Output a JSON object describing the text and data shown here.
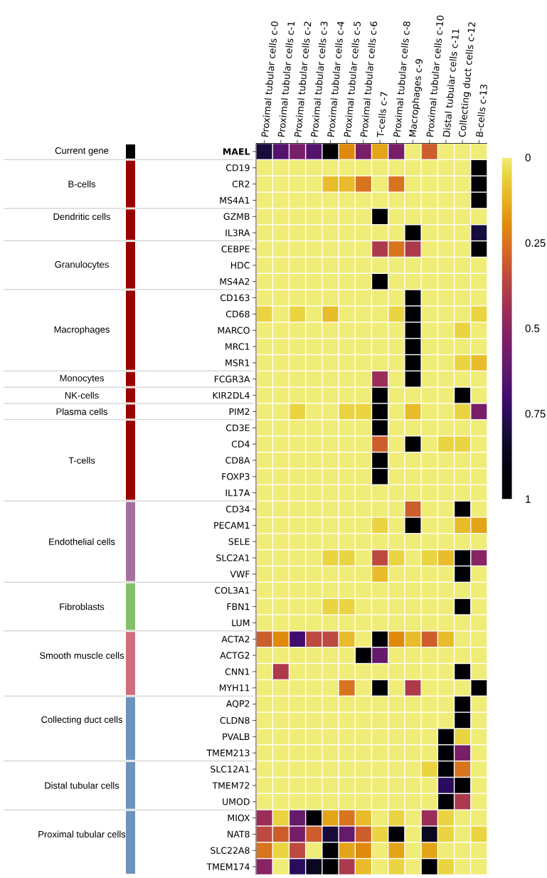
{
  "chart_data": {
    "type": "heatmap",
    "categories": [
      "Proximal tubular cells c-0",
      "Proximal tubular cells c-1",
      "Proximal tubular cells c-2",
      "Proximal tubular cells c-3",
      "Proximal tubular cells c-4",
      "Proximal tubular cells c-5",
      "Proximal tubular cells c-6",
      "T-cells c-7",
      "Proximal tubular cells c-8",
      "Macrophages c-9",
      "Proximal tubular cells c-10",
      "Distal tubular cells c-11",
      "Collecting duct cells c-12",
      "B-cells c-13"
    ],
    "y_categories": [
      "MAEL",
      "CD19",
      "CR2",
      "MS4A1",
      "GZMB",
      "IL3RA",
      "CEBPE",
      "HDC",
      "MS4A2",
      "CD163",
      "CD68",
      "MARCO",
      "MRC1",
      "MSR1",
      "FCGR3A",
      "KIR2DL4",
      "PIM2",
      "CD3E",
      "CD4",
      "CD8A",
      "FOXP3",
      "IL17A",
      "CD34",
      "PECAM1",
      "SELE",
      "SLC2A1",
      "VWF",
      "COL3A1",
      "FBN1",
      "LUM",
      "ACTA2",
      "ACTG2",
      "CNN1",
      "MYH11",
      "AQP2",
      "CLDN8",
      "PVALB",
      "TMEM213",
      "SLC12A1",
      "TMEM72",
      "UMOD",
      "MIOX",
      "NAT8",
      "SLC22A8",
      "TMEM174"
    ],
    "y2_categories": [
      "Current gene",
      null,
      "B-cells",
      null,
      "Dendritic cells",
      null,
      null,
      "Granulocytes",
      null,
      null,
      null,
      "Macrophages",
      null,
      null,
      "Monocytes",
      "NK-cells",
      "Plasma cells",
      null,
      null,
      "T-cells",
      null,
      null,
      null,
      null,
      "Endothelial cells",
      null,
      null,
      null,
      "Fibroblasts",
      null,
      null,
      "Smooth muscle cells",
      null,
      null,
      null,
      "Collecting duct cells",
      null,
      null,
      null,
      "Distal tubular cells",
      null,
      null,
      "Proximal tubular cells",
      null,
      null
    ],
    "cells": [
      [
        0.8,
        0.65,
        0.55,
        0.65,
        1,
        0.2,
        0.55,
        0.15,
        0.55,
        0,
        0.3,
        0,
        0,
        0
      ],
      [
        0,
        0,
        0,
        0,
        0,
        0,
        0,
        0,
        0,
        0,
        0,
        0,
        0,
        1
      ],
      [
        0,
        0,
        0,
        0,
        0.1,
        0.1,
        0.25,
        0,
        0.25,
        0,
        0,
        0,
        0,
        1
      ],
      [
        0,
        0,
        0,
        0,
        0,
        0,
        0,
        0,
        0,
        0,
        0,
        0,
        0,
        1
      ],
      [
        0,
        0,
        0,
        0,
        0,
        0,
        0,
        1,
        0,
        0,
        0,
        0,
        0,
        0
      ],
      [
        0,
        0,
        0,
        0,
        0,
        0,
        0,
        0,
        0,
        1,
        0,
        0,
        0,
        0.8
      ],
      [
        0,
        0,
        0,
        0,
        0,
        0,
        0,
        0.4,
        0.25,
        0.4,
        0,
        0,
        0,
        1
      ],
      [
        0,
        0,
        0,
        0,
        0,
        0,
        0,
        0,
        0,
        0,
        0,
        0,
        0,
        0
      ],
      [
        0,
        0,
        0,
        0,
        0,
        0,
        0,
        1,
        0,
        0,
        0,
        0,
        0,
        0
      ],
      [
        0,
        0,
        0,
        0,
        0,
        0,
        0,
        0,
        0,
        1,
        0,
        0,
        0,
        0
      ],
      [
        0.05,
        0,
        0.05,
        0,
        0.1,
        0,
        0,
        0,
        0.05,
        1,
        0,
        0,
        0,
        0.05
      ],
      [
        0,
        0,
        0,
        0,
        0,
        0,
        0,
        0,
        0,
        1,
        0,
        0,
        0.05,
        0
      ],
      [
        0,
        0,
        0,
        0,
        0,
        0,
        0,
        0,
        0,
        1,
        0,
        0,
        0,
        0
      ],
      [
        0,
        0,
        0,
        0,
        0,
        0,
        0,
        0,
        0,
        1,
        0,
        0,
        0.05,
        0.1
      ],
      [
        0,
        0,
        0,
        0,
        0,
        0,
        0,
        0.45,
        0,
        1,
        0,
        0,
        0,
        0
      ],
      [
        0,
        0,
        0,
        0,
        0,
        0,
        0,
        1,
        0,
        0,
        0,
        0,
        1,
        0
      ],
      [
        0,
        0,
        0.05,
        0,
        0,
        0.05,
        0.05,
        1,
        0,
        0.1,
        0,
        0,
        0.05,
        0.55
      ],
      [
        0,
        0,
        0,
        0,
        0,
        0,
        0,
        1,
        0,
        0,
        0,
        0,
        0,
        0
      ],
      [
        0,
        0,
        0,
        0,
        0,
        0,
        0,
        0.3,
        0,
        1,
        0,
        0.05,
        0.05,
        0
      ],
      [
        0,
        0,
        0,
        0,
        0,
        0,
        0,
        1,
        0,
        0,
        0,
        0,
        0,
        0
      ],
      [
        0,
        0,
        0,
        0,
        0,
        0,
        0,
        1,
        0,
        0,
        0,
        0,
        0,
        0
      ],
      [
        0,
        0,
        0,
        0,
        0,
        0,
        0,
        0,
        0,
        0,
        0,
        0,
        0,
        0
      ],
      [
        0,
        0,
        0,
        0,
        0,
        0,
        0,
        0,
        0,
        0.3,
        0,
        0,
        1,
        0
      ],
      [
        0,
        0,
        0,
        0,
        0,
        0,
        0,
        0.05,
        0,
        1,
        0,
        0,
        0.1,
        0.15
      ],
      [
        0,
        0,
        0,
        0,
        0,
        0,
        0,
        0,
        0,
        0,
        0,
        0,
        0,
        0
      ],
      [
        0,
        0,
        0,
        0,
        0.05,
        0.05,
        0,
        0.35,
        0.05,
        0,
        0.05,
        0.1,
        1,
        0.5
      ],
      [
        0,
        0,
        0,
        0,
        0,
        0,
        0,
        0.1,
        0,
        0,
        0,
        0,
        1,
        0
      ],
      [
        0,
        0,
        0,
        0,
        0,
        0,
        0,
        0,
        0,
        0,
        0,
        0,
        0,
        0
      ],
      [
        0,
        0,
        0,
        0,
        0.05,
        0.05,
        0,
        0,
        0,
        0,
        0,
        0,
        1,
        0
      ],
      [
        0,
        0,
        0,
        0,
        0,
        0,
        0,
        0,
        0,
        0,
        0,
        0,
        0,
        0
      ],
      [
        0.3,
        0.2,
        0.7,
        0.35,
        0.35,
        0.1,
        0,
        1,
        0.2,
        0.1,
        0.3,
        0.1,
        0,
        0
      ],
      [
        0,
        0,
        0,
        0,
        0,
        0,
        1,
        0.6,
        0,
        0,
        0,
        0,
        0,
        0
      ],
      [
        0,
        0.4,
        0,
        0,
        0,
        0,
        0,
        0,
        0,
        0,
        0,
        0,
        1,
        0
      ],
      [
        0,
        0,
        0,
        0,
        0,
        0.25,
        0,
        1,
        0,
        0.4,
        0,
        0,
        0,
        1
      ],
      [
        0,
        0,
        0,
        0,
        0,
        0,
        0,
        0,
        0,
        0,
        0,
        0,
        1,
        0
      ],
      [
        0,
        0,
        0,
        0,
        0,
        0,
        0,
        0,
        0,
        0,
        0,
        0,
        1,
        0
      ],
      [
        0,
        0,
        0,
        0,
        0,
        0,
        0,
        0,
        0,
        0,
        0,
        1,
        0.05,
        0
      ],
      [
        0,
        0,
        0,
        0,
        0,
        0,
        0,
        0,
        0,
        0,
        0,
        1,
        0.55,
        0
      ],
      [
        0,
        0,
        0,
        0,
        0,
        0,
        0,
        0,
        0,
        0,
        0.05,
        1,
        0.25,
        0
      ],
      [
        0,
        0,
        0,
        0,
        0,
        0,
        0,
        0,
        0,
        0,
        0,
        0.75,
        1,
        0
      ],
      [
        0,
        0,
        0,
        0,
        0,
        0,
        0,
        0,
        0,
        0,
        0,
        1,
        0.4,
        0
      ],
      [
        0.45,
        0.05,
        0.6,
        1,
        0.15,
        0.25,
        0.1,
        0,
        0.05,
        0,
        0.45,
        0.05,
        0,
        0
      ],
      [
        0.35,
        0.3,
        0.55,
        0.3,
        0.8,
        0.6,
        0.3,
        0.05,
        1,
        0,
        0.85,
        0.05,
        0,
        0.05
      ],
      [
        0.25,
        0.05,
        0.35,
        0,
        1,
        0.15,
        0.2,
        0,
        0.15,
        0,
        0.15,
        0,
        0,
        0
      ],
      [
        0.5,
        0,
        0.75,
        0.85,
        1,
        0.4,
        0.1,
        0,
        0.05,
        0,
        1,
        0.05,
        0,
        0
      ]
    ],
    "clim": [
      0,
      1
    ],
    "cticks": [
      0,
      0.25,
      0.5,
      0.75,
      1
    ]
  }
}
